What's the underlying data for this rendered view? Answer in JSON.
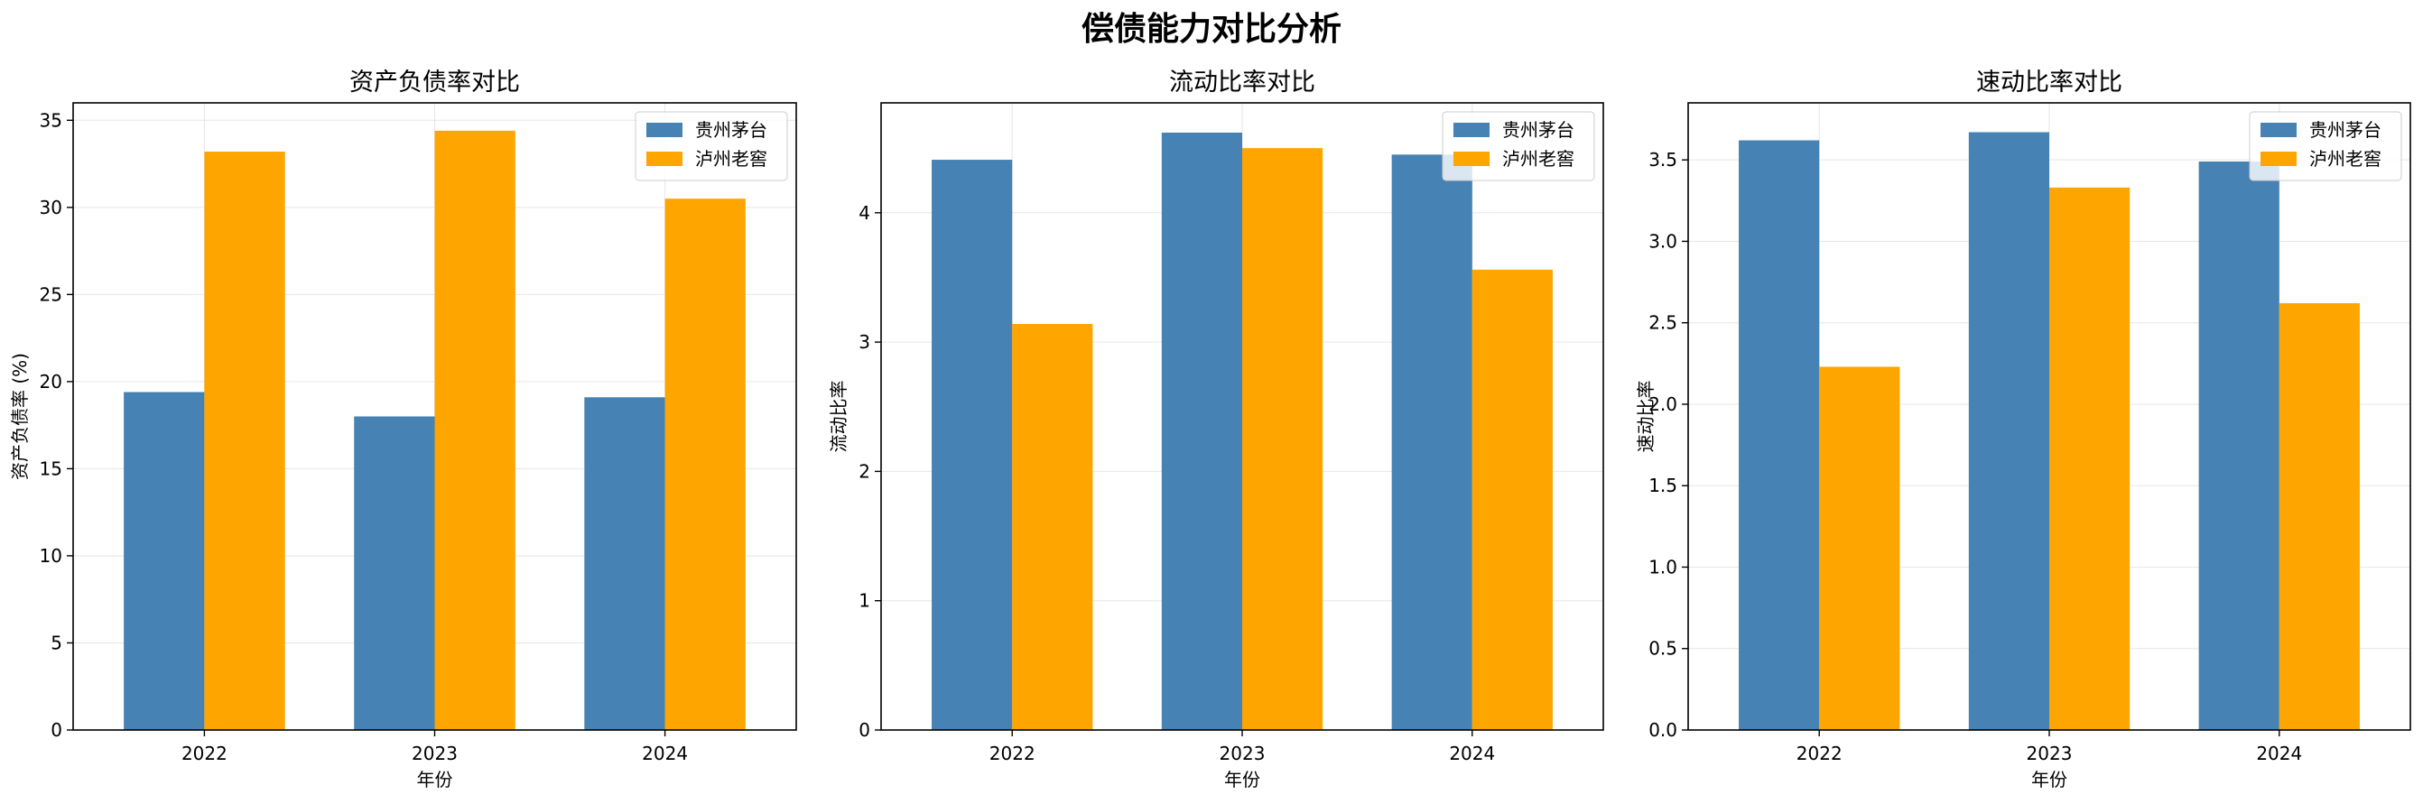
{
  "figure": {
    "title": "偿债能力对比分析"
  },
  "colors": {
    "moutai": "#4682b4",
    "luzhou": "#ffa500",
    "grid": "#e6e6e6",
    "axis": "#000000"
  },
  "chart_data": [
    {
      "type": "bar",
      "title": "资产负债率对比",
      "xlabel": "年份",
      "ylabel": "资产负债率 (%)",
      "categories": [
        "2022",
        "2023",
        "2024"
      ],
      "ylim": [
        0,
        36
      ],
      "yticks": [
        "0",
        "5",
        "10",
        "15",
        "20",
        "25",
        "30",
        "35"
      ],
      "ytick_values": [
        0,
        5,
        10,
        15,
        20,
        25,
        30,
        35
      ],
      "grid": true,
      "legend_position": "top-right",
      "series": [
        {
          "name": "贵州茅台",
          "color": "#4682b4",
          "values": [
            19.4,
            18.0,
            19.1
          ]
        },
        {
          "name": "泸州老窖",
          "color": "#ffa500",
          "values": [
            33.2,
            34.4,
            30.5
          ]
        }
      ]
    },
    {
      "type": "bar",
      "title": "流动比率对比",
      "xlabel": "年份",
      "ylabel": "流动比率",
      "categories": [
        "2022",
        "2023",
        "2024"
      ],
      "ylim": [
        0,
        4.85
      ],
      "yticks": [
        "0",
        "1",
        "2",
        "3",
        "4"
      ],
      "ytick_values": [
        0,
        1,
        2,
        3,
        4
      ],
      "grid": true,
      "legend_position": "top-right",
      "series": [
        {
          "name": "贵州茅台",
          "color": "#4682b4",
          "values": [
            4.41,
            4.62,
            4.45
          ]
        },
        {
          "name": "泸州老窖",
          "color": "#ffa500",
          "values": [
            3.14,
            4.5,
            3.56
          ]
        }
      ]
    },
    {
      "type": "bar",
      "title": "速动比率对比",
      "xlabel": "年份",
      "ylabel": "速动比率",
      "categories": [
        "2022",
        "2023",
        "2024"
      ],
      "ylim": [
        0,
        3.85
      ],
      "yticks": [
        "0.0",
        "0.5",
        "1.0",
        "1.5",
        "2.0",
        "2.5",
        "3.0",
        "3.5"
      ],
      "ytick_values": [
        0,
        0.5,
        1.0,
        1.5,
        2.0,
        2.5,
        3.0,
        3.5
      ],
      "grid": true,
      "legend_position": "top-right",
      "series": [
        {
          "name": "贵州茅台",
          "color": "#4682b4",
          "values": [
            3.62,
            3.67,
            3.49
          ]
        },
        {
          "name": "泸州老窖",
          "color": "#ffa500",
          "values": [
            2.23,
            3.33,
            2.62
          ]
        }
      ]
    }
  ]
}
